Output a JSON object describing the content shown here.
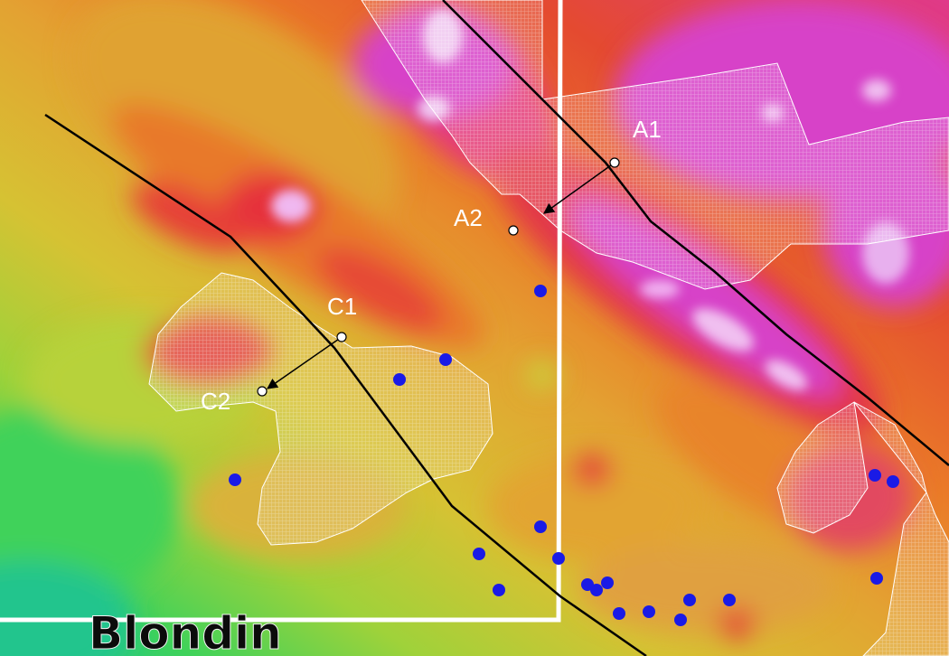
{
  "map": {
    "place_label": "Blondin",
    "point_labels": {
      "a1": "A1",
      "a2": "A2",
      "c1": "C1",
      "c2": "C2"
    },
    "marker_color": "#1a1ae6",
    "line_color": "#000000",
    "colors": {
      "low": "#3fd25a",
      "mid": "#d6c233",
      "orange": "#e88a2a",
      "high": "#e2303a",
      "peak": "#d743c8"
    }
  }
}
